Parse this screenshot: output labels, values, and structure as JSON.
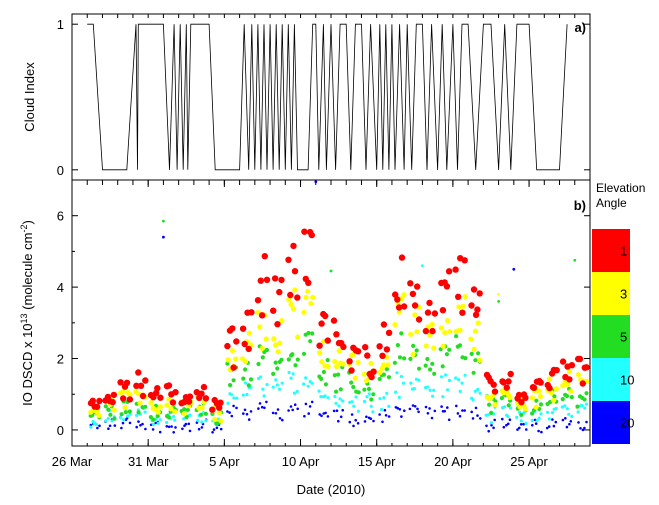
{
  "chart_data": [
    {
      "type": "line",
      "panel_label": "a)",
      "ylabel": "Cloud Index",
      "ylim": [
        -0.07,
        1.07
      ],
      "yticks": [
        0,
        1
      ],
      "x_start": "2010-03-26",
      "x_end": "2010-04-29",
      "color": "#000000",
      "series": [
        {
          "x": [
            "2010-03-27",
            "2010-03-27.4",
            "2010-03-28",
            "2010-03-29",
            "2010-03-29.6",
            "2010-03-30.2",
            "2010-03-30.3",
            "2010-03-30.35",
            "2010-03-31",
            "2010-04-01",
            "2010-04-01.4",
            "2010-04-01.7",
            "2010-04-01.9",
            "2010-04-02.1",
            "2010-04-02.3",
            "2010-04-02.5",
            "2010-04-02.6",
            "2010-04-02.8",
            "2010-04-03",
            "2010-04-04",
            "2010-04-04.4",
            "2010-04-06",
            "2010-04-06.3",
            "2010-04-06.6",
            "2010-04-06.8",
            "2010-04-07",
            "2010-04-07.2",
            "2010-04-07.4",
            "2010-04-07.6",
            "2010-04-07.8",
            "2010-04-08",
            "2010-04-08.2",
            "2010-04-08.4",
            "2010-04-08.6",
            "2010-04-08.8",
            "2010-04-09",
            "2010-04-09.2",
            "2010-04-09.4",
            "2010-04-09.6",
            "2010-04-09.8",
            "2010-04-10.5",
            "2010-04-10.8",
            "2010-04-11",
            "2010-04-11.2",
            "2010-04-11.5",
            "2010-04-11.7",
            "2010-04-12",
            "2010-04-12.3",
            "2010-04-12.6",
            "2010-04-13",
            "2010-04-13.3",
            "2010-04-13.6",
            "2010-04-14",
            "2010-04-14.3",
            "2010-04-14.6",
            "2010-04-15",
            "2010-04-15.2",
            "2010-04-15.4",
            "2010-04-15.6",
            "2010-04-15.8",
            "2010-04-16",
            "2010-04-16.2",
            "2010-04-16.5",
            "2010-04-16.8",
            "2010-04-17",
            "2010-04-17.3",
            "2010-04-17.6",
            "2010-04-18",
            "2010-04-18.3",
            "2010-04-18.6",
            "2010-04-19",
            "2010-04-19.3",
            "2010-04-19.6",
            "2010-04-20",
            "2010-04-20.3",
            "2010-04-20.6",
            "2010-04-21",
            "2010-04-21.5",
            "2010-04-22",
            "2010-04-22.5",
            "2010-04-23",
            "2010-04-23.4",
            "2010-04-23.8",
            "2010-04-24.2",
            "2010-04-24.6",
            "2010-04-25",
            "2010-04-25.5",
            "2010-04-26",
            "2010-04-27",
            "2010-04-27.5"
          ],
          "y": [
            1,
            1,
            0,
            0,
            0,
            1,
            0,
            1,
            1,
            1,
            0,
            1,
            0,
            1,
            0,
            1,
            0,
            1,
            1,
            1,
            0,
            0,
            1,
            0,
            1,
            0,
            1,
            0,
            1,
            0,
            1,
            0,
            1,
            0,
            1,
            0,
            1,
            0,
            1,
            0,
            0,
            1,
            1,
            0,
            1,
            0,
            1,
            0,
            1,
            1,
            0,
            1,
            1,
            0,
            1,
            0,
            1,
            0,
            1,
            0,
            1,
            0,
            1,
            0,
            1,
            0,
            1,
            1,
            0,
            1,
            0,
            1,
            0,
            1,
            0,
            1,
            1,
            0,
            1,
            1,
            0,
            1,
            0,
            1,
            1,
            1,
            0,
            0,
            0,
            1
          ]
        }
      ]
    },
    {
      "type": "scatter",
      "panel_label": "b)",
      "xlabel": "Date (2010)",
      "ylabel": "IO DSCD x 10",
      "ylabel_exp": "13",
      "ylabel_units": "(molecule cm",
      "ylabel_units_exp": "-2",
      "ylabel_close": ")",
      "ylim": [
        -0.45,
        7.0
      ],
      "yticks": [
        0,
        2,
        4,
        6
      ],
      "x_start": "2010-03-26",
      "x_end": "2010-04-29",
      "xticks": [
        "2010-03-26",
        "2010-03-31",
        "2010-04-05",
        "2010-04-10",
        "2010-04-15",
        "2010-04-20",
        "2010-04-25"
      ],
      "xtick_labels": [
        "26 Mar",
        "31 Mar",
        "5 Apr",
        "10 Apr",
        "15 Apr",
        "20 Apr",
        "25 Apr"
      ],
      "legend": {
        "title_line1": "Elevation",
        "title_line2": "Angle",
        "placement": "right",
        "entries": [
          {
            "label": "1",
            "color": "#ff0000"
          },
          {
            "label": "3",
            "color": "#ffff00"
          },
          {
            "label": "5",
            "color": "#22dd22"
          },
          {
            "label": "10",
            "color": "#22ffff"
          },
          {
            "label": "20",
            "color": "#0000ff"
          }
        ]
      },
      "days": [
        {
          "x": "2010-03-27",
          "values": [
            0.75,
            0.55,
            0.4,
            0.25,
            0.1
          ]
        },
        {
          "x": "2010-03-28",
          "values": [
            1.05,
            0.8,
            0.55,
            0.35,
            0.15
          ]
        },
        {
          "x": "2010-03-29",
          "values": [
            1.2,
            0.95,
            0.65,
            0.45,
            0.2
          ]
        },
        {
          "x": "2010-03-30",
          "values": [
            1.3,
            1.0,
            0.7,
            0.45,
            0.2
          ]
        },
        {
          "x": "2010-03-31",
          "values": [
            0.9,
            0.7,
            0.5,
            0.3,
            0.1
          ]
        },
        {
          "x": "2010-04-01",
          "values": [
            1.0,
            0.75,
            0.5,
            0.3,
            0.1
          ]
        },
        {
          "x": "2010-04-02",
          "values": [
            0.95,
            0.7,
            0.5,
            0.3,
            0.1
          ]
        },
        {
          "x": "2010-04-03",
          "values": [
            1.0,
            0.75,
            0.55,
            0.3,
            0.1
          ]
        },
        {
          "x": "2010-04-04",
          "values": [
            0.6,
            0.45,
            0.3,
            0.15,
            0.0
          ]
        },
        {
          "x": "2010-04-05",
          "values": [
            2.3,
            1.9,
            1.5,
            1.0,
            0.5
          ]
        },
        {
          "x": "2010-04-06",
          "values": [
            2.8,
            2.2,
            1.7,
            1.1,
            0.5
          ]
        },
        {
          "x": "2010-04-07",
          "values": [
            4.2,
            3.0,
            2.1,
            1.3,
            0.6
          ]
        },
        {
          "x": "2010-04-08",
          "values": [
            3.6,
            2.7,
            1.9,
            1.2,
            0.5
          ]
        },
        {
          "x": "2010-04-09",
          "values": [
            4.3,
            3.2,
            2.2,
            1.3,
            0.6
          ]
        },
        {
          "x": "2010-04-10",
          "values": [
            4.9,
            3.5,
            2.4,
            1.4,
            0.6
          ]
        },
        {
          "x": "2010-04-11",
          "values": [
            2.8,
            2.2,
            1.6,
            1.0,
            0.4
          ]
        },
        {
          "x": "2010-04-12",
          "values": [
            2.6,
            2.1,
            1.5,
            0.9,
            0.4
          ]
        },
        {
          "x": "2010-04-13",
          "values": [
            2.1,
            1.7,
            1.3,
            0.8,
            0.3
          ]
        },
        {
          "x": "2010-04-14",
          "values": [
            2.0,
            1.6,
            1.2,
            0.8,
            0.3
          ]
        },
        {
          "x": "2010-04-15",
          "values": [
            2.5,
            2.0,
            1.5,
            0.9,
            0.4
          ]
        },
        {
          "x": "2010-04-16",
          "values": [
            4.1,
            3.1,
            2.2,
            1.3,
            0.6
          ]
        },
        {
          "x": "2010-04-17",
          "values": [
            3.5,
            2.8,
            2.0,
            1.2,
            0.5
          ]
        },
        {
          "x": "2010-04-18",
          "values": [
            3.2,
            2.6,
            1.9,
            1.2,
            0.5
          ]
        },
        {
          "x": "2010-04-19",
          "values": [
            3.6,
            2.8,
            2.0,
            1.2,
            0.5
          ]
        },
        {
          "x": "2010-04-20",
          "values": [
            4.0,
            3.1,
            2.2,
            1.3,
            0.6
          ]
        },
        {
          "x": "2010-04-21",
          "values": [
            3.3,
            2.6,
            1.9,
            1.1,
            0.5
          ]
        },
        {
          "x": "2010-04-22",
          "values": [
            1.3,
            1.0,
            0.75,
            0.45,
            0.15
          ]
        },
        {
          "x": "2010-04-23",
          "values": [
            1.4,
            1.1,
            0.8,
            0.5,
            0.15
          ]
        },
        {
          "x": "2010-04-24",
          "values": [
            0.9,
            0.7,
            0.5,
            0.3,
            0.05
          ]
        },
        {
          "x": "2010-04-25",
          "values": [
            1.2,
            0.9,
            0.65,
            0.4,
            0.1
          ]
        },
        {
          "x": "2010-04-26",
          "values": [
            1.4,
            1.1,
            0.8,
            0.5,
            0.15
          ]
        },
        {
          "x": "2010-04-27",
          "values": [
            1.6,
            1.3,
            0.9,
            0.55,
            0.2
          ]
        },
        {
          "x": "2010-04-28",
          "values": [
            1.7,
            1.35,
            0.95,
            0.6,
            0.2
          ]
        }
      ],
      "outliers": [
        {
          "x": "2010-04-01",
          "y": 5.85,
          "color": "#22dd22"
        },
        {
          "x": "2010-04-01",
          "y": 5.4,
          "color": "#0000ff"
        },
        {
          "x": "2010-04-11",
          "y": 6.95,
          "color": "#0000ff"
        },
        {
          "x": "2010-04-12",
          "y": 4.45,
          "color": "#22ffff"
        },
        {
          "x": "2010-04-12",
          "y": 4.45,
          "color": "#22dd22"
        },
        {
          "x": "2010-04-18",
          "y": 4.6,
          "color": "#22ffff"
        },
        {
          "x": "2010-04-24",
          "y": 4.5,
          "color": "#0000ff"
        },
        {
          "x": "2010-04-23",
          "y": 3.8,
          "color": "#ffff00"
        },
        {
          "x": "2010-04-23",
          "y": 3.6,
          "color": "#22dd22"
        },
        {
          "x": "2010-04-28",
          "y": 4.75,
          "color": "#22dd22"
        }
      ]
    }
  ]
}
